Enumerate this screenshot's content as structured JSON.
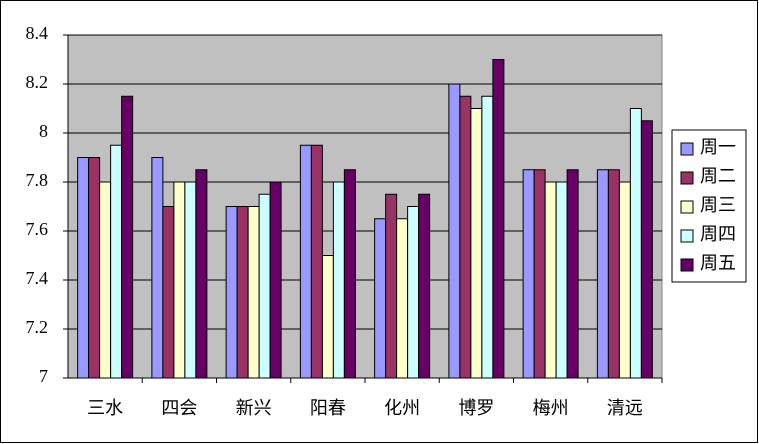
{
  "chart_data": {
    "type": "bar",
    "categories": [
      "三水",
      "四会",
      "新兴",
      "阳春",
      "化州",
      "博罗",
      "梅州",
      "清远"
    ],
    "series": [
      {
        "name": "周一",
        "color": "#9999ff",
        "values": [
          7.9,
          7.9,
          7.7,
          7.95,
          7.65,
          8.2,
          7.85,
          7.85
        ]
      },
      {
        "name": "周二",
        "color": "#993366",
        "values": [
          7.9,
          7.7,
          7.7,
          7.95,
          7.75,
          8.15,
          7.85,
          7.85
        ]
      },
      {
        "name": "周三",
        "color": "#ffffcc",
        "values": [
          7.8,
          7.8,
          7.7,
          7.5,
          7.65,
          8.1,
          7.8,
          7.8
        ]
      },
      {
        "name": "周四",
        "color": "#ccffff",
        "values": [
          7.95,
          7.8,
          7.75,
          7.8,
          7.7,
          8.15,
          7.8,
          8.1
        ]
      },
      {
        "name": "周五",
        "color": "#660066",
        "values": [
          8.15,
          7.85,
          7.8,
          7.85,
          7.75,
          8.3,
          7.85,
          8.05
        ]
      }
    ],
    "ylim": [
      7,
      8.4
    ],
    "yticks": [
      7,
      7.2,
      7.4,
      7.6,
      7.8,
      8,
      8.2,
      8.4
    ],
    "grid": true,
    "legend": "right"
  }
}
